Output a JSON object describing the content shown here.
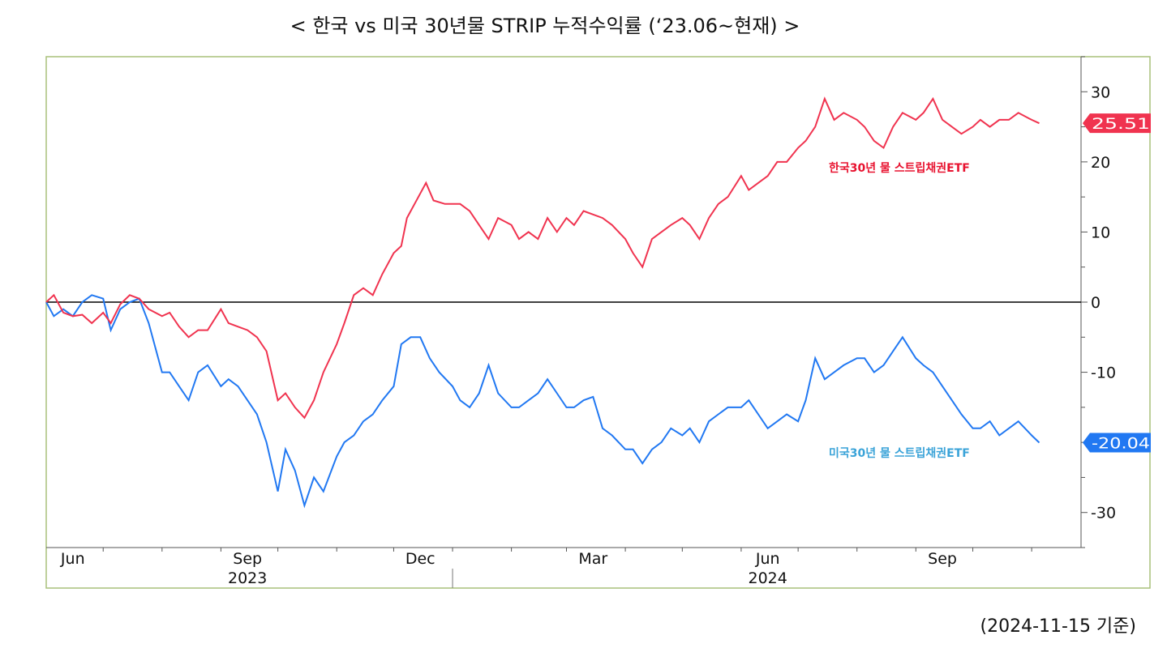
{
  "header": {
    "title": "< 한국 vs 미국 30년물 STRIP 누적수익률 (‘23.06~현재) >"
  },
  "footer": {
    "note": "(2024-11-15 기준)"
  },
  "colors": {
    "korea": "#f0334f",
    "us": "#2178f2",
    "us_label": "#3aa3d8",
    "frame": "#a9c17a"
  },
  "chart_data": {
    "type": "line",
    "title": "< 한국 vs 미국 30년물 STRIP 누적수익률 (‘23.06~현재) >",
    "ylim": [
      -35,
      35
    ],
    "yticks": [
      {
        "value": 30,
        "label": "30"
      },
      {
        "value": 20,
        "label": "20"
      },
      {
        "value": 10,
        "label": "10"
      },
      {
        "value": 0,
        "label": "0"
      },
      {
        "value": -10,
        "label": "-10"
      },
      {
        "value": -20,
        "label": "-20"
      },
      {
        "value": -30,
        "label": "-30"
      }
    ],
    "x_range": [
      "2023-06-01",
      "2024-11-27"
    ],
    "month_ticks": [
      "2023-07-01",
      "2023-08-01",
      "2023-09-01",
      "2023-10-01",
      "2023-11-01",
      "2023-12-01",
      "2024-01-01",
      "2024-02-01",
      "2024-03-01",
      "2024-04-01",
      "2024-05-01",
      "2024-06-01",
      "2024-07-01",
      "2024-08-01",
      "2024-09-01",
      "2024-10-01",
      "2024-11-01"
    ],
    "month_labels": [
      {
        "date": "2023-06-15",
        "label": "Jun"
      },
      {
        "date": "2023-09-15",
        "label": "Sep"
      },
      {
        "date": "2023-12-15",
        "label": "Dec"
      },
      {
        "date": "2024-03-15",
        "label": "Mar"
      },
      {
        "date": "2024-06-15",
        "label": "Jun"
      },
      {
        "date": "2024-09-15",
        "label": "Sep"
      }
    ],
    "year_labels": [
      {
        "date": "2023-09-15",
        "label": "2023"
      },
      {
        "date": "2024-06-15",
        "label": "2024"
      }
    ],
    "year_divider": "2024-01-01",
    "series": [
      {
        "name": "한국30년 물 스트립채권ETF",
        "last_value_label": "25.51",
        "points": [
          [
            "2023-06-01",
            0
          ],
          [
            "2023-06-05",
            1
          ],
          [
            "2023-06-10",
            -1.5
          ],
          [
            "2023-06-15",
            -2
          ],
          [
            "2023-06-20",
            -1.8
          ],
          [
            "2023-06-25",
            -3
          ],
          [
            "2023-07-01",
            -1.5
          ],
          [
            "2023-07-05",
            -3
          ],
          [
            "2023-07-10",
            -0.3
          ],
          [
            "2023-07-15",
            1
          ],
          [
            "2023-07-20",
            0.5
          ],
          [
            "2023-07-25",
            -1
          ],
          [
            "2023-08-01",
            -2
          ],
          [
            "2023-08-05",
            -1.5
          ],
          [
            "2023-08-10",
            -3.5
          ],
          [
            "2023-08-15",
            -5
          ],
          [
            "2023-08-20",
            -4
          ],
          [
            "2023-08-25",
            -4
          ],
          [
            "2023-09-01",
            -1
          ],
          [
            "2023-09-05",
            -3
          ],
          [
            "2023-09-10",
            -3.5
          ],
          [
            "2023-09-15",
            -4
          ],
          [
            "2023-09-20",
            -5
          ],
          [
            "2023-09-25",
            -7
          ],
          [
            "2023-10-01",
            -14
          ],
          [
            "2023-10-05",
            -13
          ],
          [
            "2023-10-10",
            -15
          ],
          [
            "2023-10-15",
            -16.5
          ],
          [
            "2023-10-20",
            -14
          ],
          [
            "2023-10-25",
            -10
          ],
          [
            "2023-11-01",
            -6
          ],
          [
            "2023-11-05",
            -3
          ],
          [
            "2023-11-10",
            1
          ],
          [
            "2023-11-15",
            2
          ],
          [
            "2023-11-20",
            1
          ],
          [
            "2023-11-25",
            4
          ],
          [
            "2023-12-01",
            7
          ],
          [
            "2023-12-05",
            8
          ],
          [
            "2023-12-08",
            12
          ],
          [
            "2023-12-12",
            14
          ],
          [
            "2023-12-18",
            17
          ],
          [
            "2023-12-22",
            14.5
          ],
          [
            "2023-12-28",
            14
          ],
          [
            "2024-01-05",
            14
          ],
          [
            "2024-01-10",
            13
          ],
          [
            "2024-01-15",
            11
          ],
          [
            "2024-01-20",
            9
          ],
          [
            "2024-01-25",
            12
          ],
          [
            "2024-02-01",
            11
          ],
          [
            "2024-02-05",
            9
          ],
          [
            "2024-02-10",
            10
          ],
          [
            "2024-02-15",
            9
          ],
          [
            "2024-02-20",
            12
          ],
          [
            "2024-02-25",
            10
          ],
          [
            "2024-03-01",
            12
          ],
          [
            "2024-03-05",
            11
          ],
          [
            "2024-03-10",
            13
          ],
          [
            "2024-03-15",
            12.5
          ],
          [
            "2024-03-20",
            12
          ],
          [
            "2024-03-25",
            11
          ],
          [
            "2024-04-01",
            9
          ],
          [
            "2024-04-05",
            7
          ],
          [
            "2024-04-10",
            5
          ],
          [
            "2024-04-15",
            9
          ],
          [
            "2024-04-20",
            10
          ],
          [
            "2024-04-25",
            11
          ],
          [
            "2024-05-01",
            12
          ],
          [
            "2024-05-05",
            11
          ],
          [
            "2024-05-10",
            9
          ],
          [
            "2024-05-15",
            12
          ],
          [
            "2024-05-20",
            14
          ],
          [
            "2024-05-25",
            15
          ],
          [
            "2024-06-01",
            18
          ],
          [
            "2024-06-05",
            16
          ],
          [
            "2024-06-10",
            17
          ],
          [
            "2024-06-15",
            18
          ],
          [
            "2024-06-20",
            20
          ],
          [
            "2024-06-25",
            20
          ],
          [
            "2024-07-01",
            22
          ],
          [
            "2024-07-05",
            23
          ],
          [
            "2024-07-10",
            25
          ],
          [
            "2024-07-15",
            29
          ],
          [
            "2024-07-20",
            26
          ],
          [
            "2024-07-25",
            27
          ],
          [
            "2024-08-01",
            26
          ],
          [
            "2024-08-05",
            25
          ],
          [
            "2024-08-10",
            23
          ],
          [
            "2024-08-15",
            22
          ],
          [
            "2024-08-20",
            25
          ],
          [
            "2024-08-25",
            27
          ],
          [
            "2024-09-01",
            26
          ],
          [
            "2024-09-05",
            27
          ],
          [
            "2024-09-10",
            29
          ],
          [
            "2024-09-15",
            26
          ],
          [
            "2024-09-20",
            25
          ],
          [
            "2024-09-25",
            24
          ],
          [
            "2024-10-01",
            25
          ],
          [
            "2024-10-05",
            26
          ],
          [
            "2024-10-10",
            25
          ],
          [
            "2024-10-15",
            26
          ],
          [
            "2024-10-20",
            26
          ],
          [
            "2024-10-25",
            27
          ],
          [
            "2024-11-01",
            26
          ],
          [
            "2024-11-05",
            25.51
          ]
        ]
      },
      {
        "name": "미국30년 물 스트립채권ETF",
        "last_value_label": "-20.04",
        "points": [
          [
            "2023-06-01",
            0
          ],
          [
            "2023-06-05",
            -2
          ],
          [
            "2023-06-10",
            -1
          ],
          [
            "2023-06-15",
            -2
          ],
          [
            "2023-06-20",
            0
          ],
          [
            "2023-06-25",
            1
          ],
          [
            "2023-07-01",
            0.5
          ],
          [
            "2023-07-05",
            -4
          ],
          [
            "2023-07-10",
            -1
          ],
          [
            "2023-07-15",
            0
          ],
          [
            "2023-07-20",
            0.5
          ],
          [
            "2023-07-25",
            -3
          ],
          [
            "2023-08-01",
            -10
          ],
          [
            "2023-08-05",
            -10
          ],
          [
            "2023-08-10",
            -12
          ],
          [
            "2023-08-15",
            -14
          ],
          [
            "2023-08-20",
            -10
          ],
          [
            "2023-08-25",
            -9
          ],
          [
            "2023-09-01",
            -12
          ],
          [
            "2023-09-05",
            -11
          ],
          [
            "2023-09-10",
            -12
          ],
          [
            "2023-09-15",
            -14
          ],
          [
            "2023-09-20",
            -16
          ],
          [
            "2023-09-25",
            -20
          ],
          [
            "2023-10-01",
            -27
          ],
          [
            "2023-10-05",
            -21
          ],
          [
            "2023-10-10",
            -24
          ],
          [
            "2023-10-15",
            -29
          ],
          [
            "2023-10-20",
            -25
          ],
          [
            "2023-10-25",
            -27
          ],
          [
            "2023-11-01",
            -22
          ],
          [
            "2023-11-05",
            -20
          ],
          [
            "2023-11-10",
            -19
          ],
          [
            "2023-11-15",
            -17
          ],
          [
            "2023-11-20",
            -16
          ],
          [
            "2023-11-25",
            -14
          ],
          [
            "2023-12-01",
            -12
          ],
          [
            "2023-12-05",
            -6
          ],
          [
            "2023-12-10",
            -5
          ],
          [
            "2023-12-15",
            -5
          ],
          [
            "2023-12-20",
            -8
          ],
          [
            "2023-12-25",
            -10
          ],
          [
            "2024-01-01",
            -12
          ],
          [
            "2024-01-05",
            -14
          ],
          [
            "2024-01-10",
            -15
          ],
          [
            "2024-01-15",
            -13
          ],
          [
            "2024-01-20",
            -9
          ],
          [
            "2024-01-25",
            -13
          ],
          [
            "2024-02-01",
            -15
          ],
          [
            "2024-02-05",
            -15
          ],
          [
            "2024-02-10",
            -14
          ],
          [
            "2024-02-15",
            -13
          ],
          [
            "2024-02-20",
            -11
          ],
          [
            "2024-02-25",
            -13
          ],
          [
            "2024-03-01",
            -15
          ],
          [
            "2024-03-05",
            -15
          ],
          [
            "2024-03-10",
            -14
          ],
          [
            "2024-03-15",
            -13.5
          ],
          [
            "2024-03-20",
            -18
          ],
          [
            "2024-03-25",
            -19
          ],
          [
            "2024-04-01",
            -21
          ],
          [
            "2024-04-05",
            -21
          ],
          [
            "2024-04-10",
            -23
          ],
          [
            "2024-04-15",
            -21
          ],
          [
            "2024-04-20",
            -20
          ],
          [
            "2024-04-25",
            -18
          ],
          [
            "2024-05-01",
            -19
          ],
          [
            "2024-05-05",
            -18
          ],
          [
            "2024-05-10",
            -20
          ],
          [
            "2024-05-15",
            -17
          ],
          [
            "2024-05-20",
            -16
          ],
          [
            "2024-05-25",
            -15
          ],
          [
            "2024-06-01",
            -15
          ],
          [
            "2024-06-05",
            -14
          ],
          [
            "2024-06-10",
            -16
          ],
          [
            "2024-06-15",
            -18
          ],
          [
            "2024-06-20",
            -17
          ],
          [
            "2024-06-25",
            -16
          ],
          [
            "2024-07-01",
            -17
          ],
          [
            "2024-07-05",
            -14
          ],
          [
            "2024-07-10",
            -8
          ],
          [
            "2024-07-15",
            -11
          ],
          [
            "2024-07-20",
            -10
          ],
          [
            "2024-07-25",
            -9
          ],
          [
            "2024-08-01",
            -8
          ],
          [
            "2024-08-05",
            -8
          ],
          [
            "2024-08-10",
            -10
          ],
          [
            "2024-08-15",
            -9
          ],
          [
            "2024-08-20",
            -7
          ],
          [
            "2024-08-25",
            -5
          ],
          [
            "2024-09-01",
            -8
          ],
          [
            "2024-09-05",
            -9
          ],
          [
            "2024-09-10",
            -10
          ],
          [
            "2024-09-15",
            -12
          ],
          [
            "2024-09-20",
            -14
          ],
          [
            "2024-09-25",
            -16
          ],
          [
            "2024-10-01",
            -18
          ],
          [
            "2024-10-05",
            -18
          ],
          [
            "2024-10-10",
            -17
          ],
          [
            "2024-10-15",
            -19
          ],
          [
            "2024-10-20",
            -18
          ],
          [
            "2024-10-25",
            -17
          ],
          [
            "2024-11-01",
            -19
          ],
          [
            "2024-11-05",
            -20.04
          ]
        ]
      }
    ],
    "reference_line": 0
  }
}
